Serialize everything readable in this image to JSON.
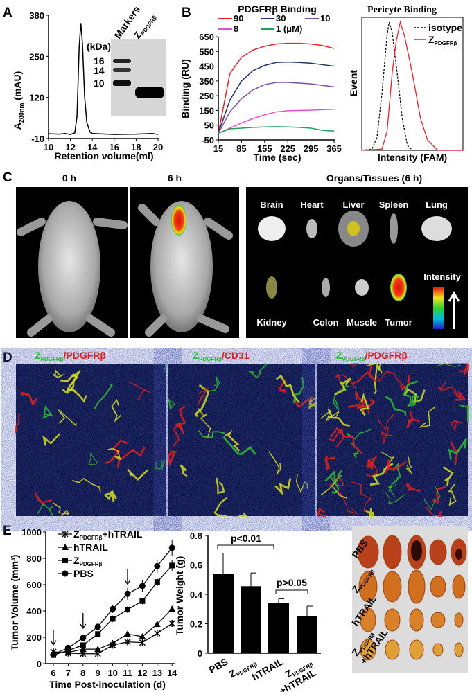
{
  "panels": {
    "a": "A",
    "b": "B",
    "c": "C",
    "d": "D",
    "e": "E"
  },
  "gel": {
    "lanes": [
      "Markers",
      "Z"
    ],
    "lane_sub": "PDGFRβ",
    "unit": "(kDa)",
    "markers": [
      "16",
      "14",
      "10"
    ]
  },
  "colors": {
    "red": "#e8202a",
    "navy": "#1f3168",
    "purple": "#7a4fa6",
    "magenta": "#e64fd0",
    "green": "#1fa35a"
  },
  "chart_data": [
    {
      "type": "line",
      "xlabel": "Retention volume(ml)",
      "ylabel": "A",
      "ylabel_sub": "280nm",
      "ylabel_unit": " (mAU)",
      "xlim": [
        10,
        20
      ],
      "ylim": [
        -10,
        380
      ],
      "xticks": [
        "10",
        "12",
        "14",
        "16",
        "18",
        "20"
      ],
      "yticks": [
        "380",
        "250",
        "120",
        "-10"
      ],
      "series": [
        {
          "x": [
            10,
            11,
            11.5,
            12,
            12.4,
            12.6,
            12.8,
            12.95,
            13.1,
            13.3,
            13.5,
            13.8,
            14,
            16,
            18,
            19.5,
            20
          ],
          "y": [
            5,
            4,
            6,
            3,
            8,
            60,
            280,
            355,
            290,
            120,
            40,
            10,
            6,
            3,
            4,
            6,
            3
          ]
        }
      ]
    },
    {
      "type": "line",
      "title": "PDGFRβ Binding",
      "xlabel": "Time (sec)",
      "ylabel": "Binding (RU)",
      "xlim": [
        15,
        365
      ],
      "ylim": [
        -50,
        650
      ],
      "xticks": [
        "15",
        "85",
        "155",
        "225",
        "295",
        "365"
      ],
      "yticks": [
        "650",
        "550",
        "450",
        "350",
        "250",
        "150",
        "50",
        "-50"
      ],
      "x": [
        15,
        50,
        85,
        120,
        155,
        190,
        225,
        260,
        295,
        330,
        365
      ],
      "series": [
        {
          "name": "90",
          "color": "#e8202a",
          "values": [
            -5,
            400,
            510,
            560,
            585,
            600,
            605,
            605,
            600,
            590,
            570
          ]
        },
        {
          "name": "30",
          "color": "#1f3168",
          "values": [
            -5,
            220,
            350,
            420,
            455,
            475,
            478,
            475,
            470,
            460,
            450
          ]
        },
        {
          "name": "10",
          "color": "#7a4fa6",
          "values": [
            -5,
            140,
            230,
            290,
            325,
            340,
            340,
            335,
            330,
            320,
            310
          ]
        },
        {
          "name": "8",
          "color": "#e64fd0",
          "values": [
            -5,
            30,
            65,
            95,
            120,
            140,
            148,
            150,
            152,
            155,
            158
          ]
        },
        {
          "name": "1 (μM)",
          "color": "#1fa35a",
          "values": [
            -5,
            25,
            30,
            35,
            38,
            40,
            38,
            35,
            30,
            15,
            10
          ]
        }
      ],
      "legend": "top"
    },
    {
      "type": "line",
      "title": "Pericyte Binding",
      "xlabel": "Intensity (FAM)",
      "ylabel": "Event",
      "series": [
        {
          "name": "isotype",
          "style": "dashed",
          "color": "#000000",
          "x": [
            0,
            0.1,
            0.15,
            0.2,
            0.25,
            0.27,
            0.3,
            0.35,
            0.4,
            0.45,
            0.5,
            1
          ],
          "y": [
            0,
            0.01,
            0.1,
            0.45,
            0.9,
            1,
            0.92,
            0.6,
            0.25,
            0.04,
            0,
            0
          ]
        },
        {
          "name": "Z",
          "name_sub": "PDGFRβ",
          "color": "#e8202a",
          "x": [
            0,
            0.2,
            0.25,
            0.3,
            0.34,
            0.38,
            0.42,
            0.5,
            0.58,
            0.65,
            0.75,
            1
          ],
          "y": [
            0,
            0.01,
            0.15,
            0.6,
            0.85,
            1,
            0.9,
            0.6,
            0.25,
            0.08,
            0,
            0
          ]
        }
      ],
      "legend": "top-right"
    },
    {
      "type": "line",
      "xlabel": "Time Post-inoculation (d)",
      "ylabel": "Tumor Volume (mm³)",
      "xlim": [
        6,
        14
      ],
      "ylim": [
        0,
        1000
      ],
      "xticks": [
        "6",
        "7",
        "8",
        "9",
        "10",
        "11",
        "12",
        "13",
        "14"
      ],
      "yticks": [
        "1000",
        "800",
        "600",
        "400",
        "200",
        "0"
      ],
      "x": [
        6,
        7,
        8,
        9,
        10,
        11,
        12,
        13,
        14
      ],
      "arrows_at": [
        6,
        8,
        11
      ],
      "series": [
        {
          "name": "Z",
          "name_sub": "PDGFRβ",
          "name_suffix": "+hTRAIL",
          "marker": "star",
          "values": [
            90,
            80,
            75,
            75,
            140,
            165,
            160,
            230,
            305
          ],
          "err": [
            15,
            12,
            15,
            15,
            15,
            15,
            15,
            20,
            25
          ]
        },
        {
          "name": "hTRAIL",
          "marker": "triangle",
          "values": [
            80,
            85,
            110,
            110,
            155,
            225,
            205,
            300,
            415
          ],
          "err": [
            15,
            12,
            20,
            15,
            15,
            20,
            15,
            20,
            25
          ]
        },
        {
          "name": "Z",
          "name_sub": "PDGFRβ",
          "marker": "square",
          "values": [
            65,
            100,
            140,
            225,
            340,
            410,
            475,
            620,
            745
          ],
          "err": [
            10,
            12,
            20,
            20,
            25,
            25,
            25,
            30,
            45
          ]
        },
        {
          "name": "PBS",
          "marker": "circle",
          "values": [
            70,
            120,
            195,
            280,
            415,
            530,
            590,
            740,
            880
          ],
          "err": [
            10,
            15,
            15,
            20,
            30,
            45,
            45,
            50,
            60
          ]
        }
      ],
      "legend": "top-left"
    },
    {
      "type": "bar",
      "ylabel": "Tumor Weight (g)",
      "ylim": [
        0,
        0.8
      ],
      "yticks": [
        "0.8",
        "0.6",
        "0.4",
        "0.2",
        "0"
      ],
      "categories": [
        {
          "main": "PBS"
        },
        {
          "main": "Z",
          "sub": "PDGFRβ"
        },
        {
          "main": "hTRAIL"
        },
        {
          "main": "Z",
          "sub": "PDGFRβ",
          "line2": "+hTRAIL"
        }
      ],
      "values": [
        0.54,
        0.455,
        0.34,
        0.25
      ],
      "err": [
        0.14,
        0.09,
        0.03,
        0.07
      ],
      "annotations": [
        "p<0.01",
        "p>0.05"
      ]
    }
  ],
  "imaging": {
    "times": [
      "0 h",
      "6 h"
    ],
    "organs_title": "Organs/Tissues (6 h)",
    "organs": [
      "Brain",
      "Heart",
      "Liver",
      "Spleen",
      "Lung",
      "Kidney",
      "Colon",
      "Muscle",
      "Tumor"
    ],
    "intensity": "Intensity"
  },
  "staining": [
    {
      "a": "Z",
      "sub": "PDGFRβ",
      "b": "/PDGFRβ"
    },
    {
      "a": "Z",
      "sub": "PDGFRβ",
      "b": "/CD31"
    },
    {
      "a": "Z",
      "sub": "PDGFRβ",
      "b": "/PDGFRβ"
    }
  ],
  "tumor_photo": {
    "rows": [
      {
        "main": "PBS"
      },
      {
        "main": "Z",
        "sub": "PDGFRβ"
      },
      {
        "main": "hTRAIL"
      },
      {
        "main": "Z",
        "sub": "PDGFRβ",
        "line2": "+hTRAIL"
      }
    ]
  }
}
